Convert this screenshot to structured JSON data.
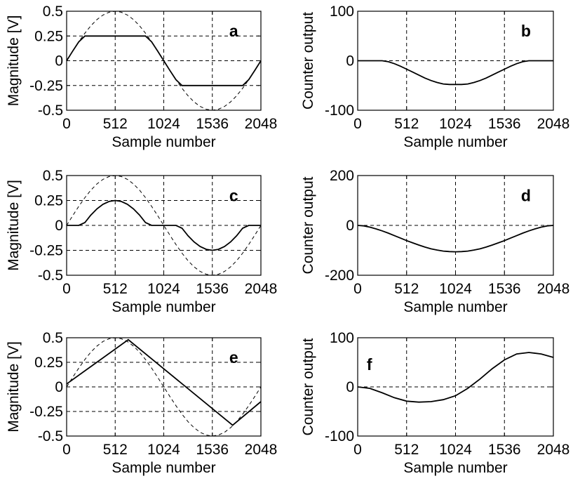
{
  "chart_data": [
    {
      "panel": "a",
      "type": "line",
      "letter": "a",
      "xlabel": "Sample number",
      "ylabel": "Magnitude [V]",
      "xlim": [
        0,
        2048
      ],
      "ylim": [
        -0.5,
        0.5
      ],
      "xticks": [
        0,
        512,
        1024,
        1536,
        2048
      ],
      "xtick_labels": [
        "0",
        "512",
        "1024",
        "1536",
        "2048"
      ],
      "yticks": [
        -0.5,
        -0.25,
        0,
        0.25,
        0.5
      ],
      "ytick_labels": [
        "-0.5",
        "-0.25",
        "0",
        "0.25",
        "0.5"
      ],
      "grid": true,
      "series": [
        {
          "style": "dashed",
          "x": [
            0,
            64,
            128,
            192,
            256,
            320,
            384,
            448,
            512,
            576,
            640,
            704,
            768,
            832,
            896,
            960,
            1024,
            1088,
            1152,
            1216,
            1280,
            1344,
            1408,
            1472,
            1536,
            1600,
            1664,
            1728,
            1792,
            1856,
            1920,
            1984,
            2048
          ],
          "values": [
            0,
            0.098,
            0.191,
            0.278,
            0.354,
            0.416,
            0.462,
            0.49,
            0.5,
            0.49,
            0.462,
            0.416,
            0.354,
            0.278,
            0.191,
            0.098,
            0,
            -0.098,
            -0.191,
            -0.278,
            -0.354,
            -0.416,
            -0.462,
            -0.49,
            -0.5,
            -0.49,
            -0.462,
            -0.416,
            -0.354,
            -0.278,
            -0.191,
            -0.098,
            0
          ]
        },
        {
          "style": "solid",
          "x": [
            0,
            64,
            128,
            192,
            256,
            320,
            384,
            448,
            512,
            576,
            640,
            704,
            768,
            832,
            896,
            960,
            1024,
            1088,
            1152,
            1216,
            1280,
            1344,
            1408,
            1472,
            1536,
            1600,
            1664,
            1728,
            1792,
            1856,
            1920,
            1984,
            2048
          ],
          "values": [
            0,
            0.098,
            0.191,
            0.25,
            0.25,
            0.25,
            0.25,
            0.25,
            0.25,
            0.25,
            0.25,
            0.25,
            0.25,
            0.25,
            0.191,
            0.098,
            0,
            -0.098,
            -0.191,
            -0.25,
            -0.25,
            -0.25,
            -0.25,
            -0.25,
            -0.25,
            -0.25,
            -0.25,
            -0.25,
            -0.25,
            -0.25,
            -0.191,
            -0.098,
            0
          ]
        }
      ]
    },
    {
      "panel": "b",
      "type": "line",
      "letter": "b",
      "xlabel": "Sample number",
      "ylabel": "Counter output",
      "xlim": [
        0,
        2048
      ],
      "ylim": [
        -100,
        100
      ],
      "xticks": [
        0,
        512,
        1024,
        1536,
        2048
      ],
      "xtick_labels": [
        "0",
        "512",
        "1024",
        "1536",
        "2048"
      ],
      "yticks": [
        -100,
        0,
        100
      ],
      "ytick_labels": [
        "-100",
        "0",
        "100"
      ],
      "grid": true,
      "series": [
        {
          "style": "solid",
          "x": [
            0,
            64,
            128,
            192,
            256,
            320,
            384,
            448,
            512,
            576,
            640,
            704,
            768,
            832,
            896,
            960,
            1024,
            1088,
            1152,
            1216,
            1280,
            1344,
            1408,
            1472,
            1536,
            1600,
            1664,
            1728,
            1792,
            1856,
            1920,
            1984,
            2048
          ],
          "values": [
            0,
            0,
            0,
            0,
            0,
            -2,
            -6,
            -11,
            -17,
            -23,
            -29,
            -35,
            -40,
            -44,
            -47,
            -48,
            -48,
            -48,
            -47,
            -44,
            -40,
            -35,
            -29,
            -23,
            -17,
            -11,
            -6,
            -2,
            0,
            0,
            0,
            0,
            0
          ]
        }
      ]
    },
    {
      "panel": "c",
      "type": "line",
      "letter": "c",
      "xlabel": "Sample number",
      "ylabel": "Magnitude [V]",
      "xlim": [
        0,
        2048
      ],
      "ylim": [
        -0.5,
        0.5
      ],
      "xticks": [
        0,
        512,
        1024,
        1536,
        2048
      ],
      "xtick_labels": [
        "0",
        "512",
        "1024",
        "1536",
        "2048"
      ],
      "yticks": [
        -0.5,
        -0.25,
        0,
        0.25,
        0.5
      ],
      "ytick_labels": [
        "-0.5",
        "-0.25",
        "0",
        "0.25",
        "0.5"
      ],
      "grid": true,
      "series": [
        {
          "style": "dashed",
          "x": [
            0,
            64,
            128,
            192,
            256,
            320,
            384,
            448,
            512,
            576,
            640,
            704,
            768,
            832,
            896,
            960,
            1024,
            1088,
            1152,
            1216,
            1280,
            1344,
            1408,
            1472,
            1536,
            1600,
            1664,
            1728,
            1792,
            1856,
            1920,
            1984,
            2048
          ],
          "values": [
            0,
            0.098,
            0.191,
            0.278,
            0.354,
            0.416,
            0.462,
            0.49,
            0.5,
            0.49,
            0.462,
            0.416,
            0.354,
            0.278,
            0.191,
            0.098,
            0,
            -0.098,
            -0.191,
            -0.278,
            -0.354,
            -0.416,
            -0.462,
            -0.49,
            -0.5,
            -0.49,
            -0.462,
            -0.416,
            -0.354,
            -0.278,
            -0.191,
            -0.098,
            0
          ]
        },
        {
          "style": "solid",
          "x": [
            0,
            64,
            128,
            192,
            256,
            320,
            384,
            448,
            512,
            576,
            640,
            704,
            768,
            832,
            896,
            960,
            1024,
            1088,
            1152,
            1216,
            1280,
            1344,
            1408,
            1472,
            1536,
            1600,
            1664,
            1728,
            1792,
            1856,
            1920,
            1984,
            2048
          ],
          "values": [
            0,
            0,
            0,
            0.028,
            0.104,
            0.166,
            0.212,
            0.24,
            0.25,
            0.24,
            0.212,
            0.166,
            0.104,
            0.028,
            0,
            0,
            0,
            0,
            0,
            -0.028,
            -0.104,
            -0.166,
            -0.212,
            -0.24,
            -0.25,
            -0.24,
            -0.212,
            -0.166,
            -0.104,
            -0.028,
            0,
            0,
            0
          ]
        }
      ]
    },
    {
      "panel": "d",
      "type": "line",
      "letter": "d",
      "xlabel": "Sample number",
      "ylabel": "Counter output",
      "xlim": [
        0,
        2048
      ],
      "ylim": [
        -200,
        200
      ],
      "xticks": [
        0,
        512,
        1024,
        1536,
        2048
      ],
      "xtick_labels": [
        "0",
        "512",
        "1024",
        "1536",
        "2048"
      ],
      "yticks": [
        -200,
        0,
        200
      ],
      "ytick_labels": [
        "-200",
        "0",
        "200"
      ],
      "grid": true,
      "series": [
        {
          "style": "solid",
          "x": [
            0,
            64,
            128,
            192,
            256,
            320,
            384,
            448,
            512,
            576,
            640,
            704,
            768,
            832,
            896,
            960,
            1024,
            1088,
            1152,
            1216,
            1280,
            1344,
            1408,
            1472,
            1536,
            1600,
            1664,
            1728,
            1792,
            1856,
            1920,
            1984,
            2048
          ],
          "values": [
            0,
            -2,
            -7,
            -14,
            -22,
            -31,
            -41,
            -51,
            -61,
            -70,
            -79,
            -87,
            -94,
            -99,
            -103,
            -105,
            -106,
            -105,
            -103,
            -99,
            -94,
            -87,
            -79,
            -70,
            -61,
            -51,
            -41,
            -31,
            -22,
            -14,
            -7,
            -2,
            0
          ]
        }
      ]
    },
    {
      "panel": "e",
      "type": "line",
      "letter": "e",
      "xlabel": "Sample number",
      "ylabel": "Magnitude [V]",
      "xlim": [
        0,
        2048
      ],
      "ylim": [
        -0.5,
        0.5
      ],
      "xticks": [
        0,
        512,
        1024,
        1536,
        2048
      ],
      "xtick_labels": [
        "0",
        "512",
        "1024",
        "1536",
        "2048"
      ],
      "yticks": [
        -0.5,
        -0.25,
        0,
        0.25,
        0.5
      ],
      "ytick_labels": [
        "-0.5",
        "-0.25",
        "0",
        "0.25",
        "0.5"
      ],
      "grid": true,
      "series": [
        {
          "style": "dashed",
          "x": [
            0,
            64,
            128,
            192,
            256,
            320,
            384,
            448,
            512,
            576,
            640,
            704,
            768,
            832,
            896,
            960,
            1024,
            1088,
            1152,
            1216,
            1280,
            1344,
            1408,
            1472,
            1536,
            1600,
            1664,
            1728,
            1792,
            1856,
            1920,
            1984,
            2048
          ],
          "values": [
            0,
            0.098,
            0.191,
            0.278,
            0.354,
            0.416,
            0.462,
            0.49,
            0.5,
            0.49,
            0.462,
            0.416,
            0.354,
            0.278,
            0.191,
            0.098,
            0,
            -0.098,
            -0.191,
            -0.278,
            -0.354,
            -0.416,
            -0.462,
            -0.49,
            -0.5,
            -0.49,
            -0.462,
            -0.416,
            -0.354,
            -0.278,
            -0.191,
            -0.098,
            0
          ]
        },
        {
          "style": "solid",
          "x": [
            0,
            650,
            1750,
            2048
          ],
          "values": [
            0.03,
            0.48,
            -0.39,
            -0.15
          ]
        }
      ]
    },
    {
      "panel": "f",
      "type": "line",
      "letter": "f",
      "xlabel": "Sample number",
      "ylabel": "Counter output",
      "xlim": [
        0,
        2048
      ],
      "ylim": [
        -100,
        100
      ],
      "xticks": [
        0,
        512,
        1024,
        1536,
        2048
      ],
      "xtick_labels": [
        "0",
        "512",
        "1024",
        "1536",
        "2048"
      ],
      "yticks": [
        -100,
        0,
        100
      ],
      "ytick_labels": [
        "-100",
        "0",
        "100"
      ],
      "grid": true,
      "series": [
        {
          "style": "solid",
          "x": [
            0,
            128,
            256,
            384,
            512,
            640,
            768,
            896,
            1024,
            1152,
            1280,
            1408,
            1536,
            1664,
            1792,
            1920,
            2048
          ],
          "values": [
            0,
            -3,
            -12,
            -22,
            -29,
            -31,
            -30,
            -26,
            -18,
            -3,
            16,
            37,
            55,
            67,
            70,
            67,
            60
          ]
        }
      ]
    }
  ]
}
